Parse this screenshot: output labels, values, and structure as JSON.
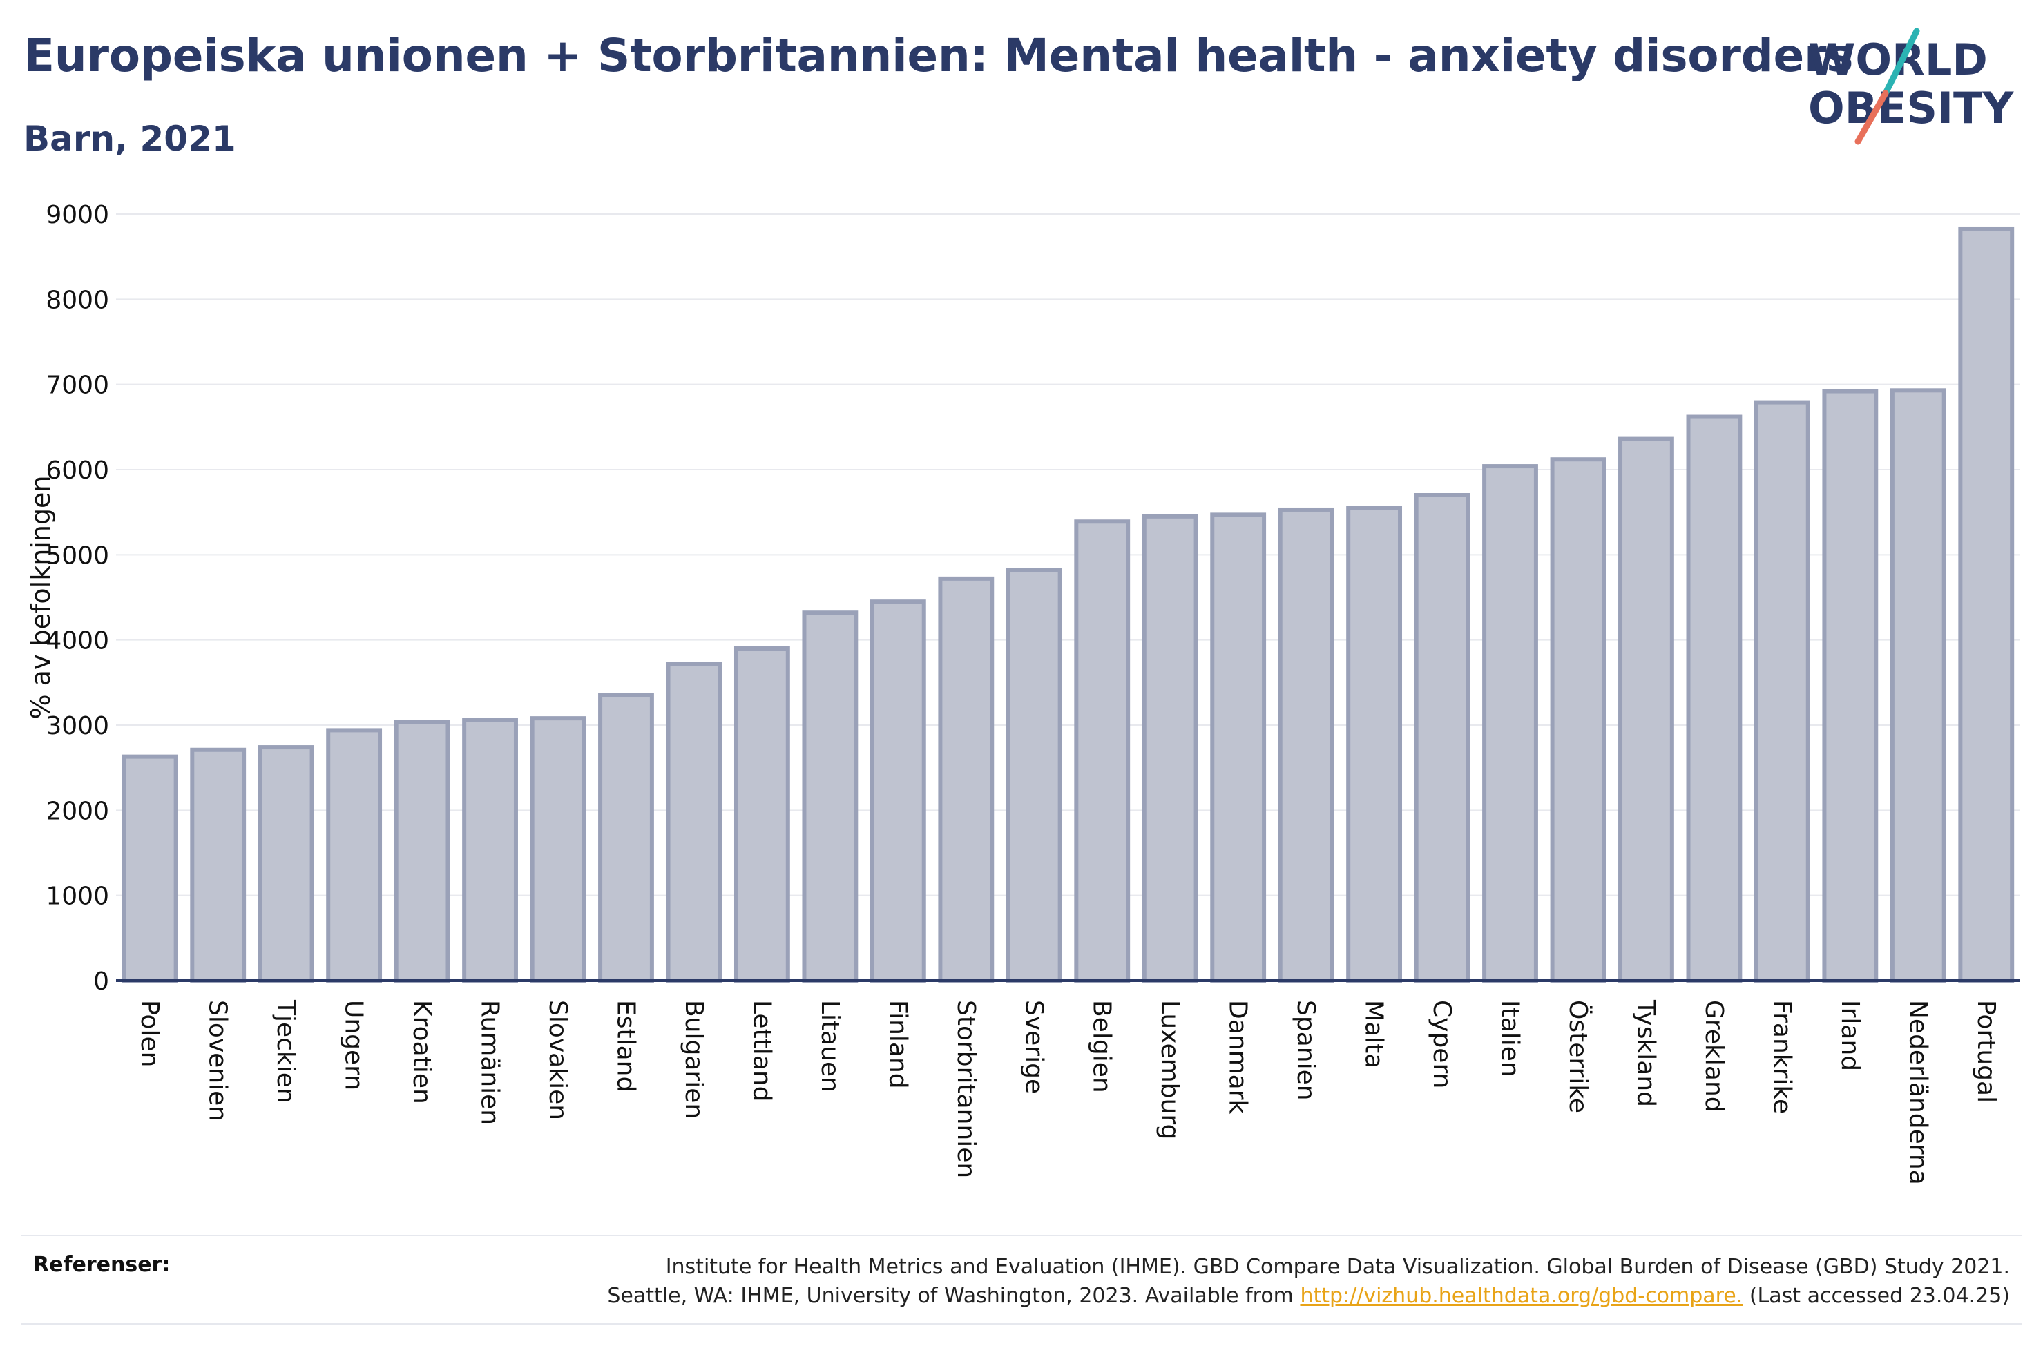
{
  "title": "Europeiska unionen + Storbritannien: Mental health - anxiety disorders",
  "subtitle": "Barn, 2021",
  "logo": {
    "line1": "WORLD",
    "line2": "OBESITY",
    "colors": {
      "navy": "#2b3a67",
      "teal": "#2bb3b3",
      "coral": "#e8705a"
    }
  },
  "references": {
    "label": "Referenser:",
    "line1": "Institute for Health Metrics and Evaluation (IHME). GBD Compare Data Visualization. Global Burden of Disease (GBD) Study 2021.",
    "line2_prefix": "Seattle, WA: IHME, University of Washington, 2023. Available from ",
    "link_text": "http://vizhub.healthdata.org/gbd-compare.",
    "line2_suffix": " (Last accessed 23.04.25)"
  },
  "chart_data": {
    "type": "bar",
    "ylabel": "% av befolkningen",
    "xlabel": "",
    "ylim": [
      0,
      9000
    ],
    "yticks": [
      0,
      1000,
      2000,
      3000,
      4000,
      5000,
      6000,
      7000,
      8000,
      9000
    ],
    "grid": true,
    "bar_color": "#bfc3d0",
    "bar_edge_color": "#9aa1b8",
    "categories": [
      "Polen",
      "Slovenien",
      "Tjeckien",
      "Ungern",
      "Kroatien",
      "Rumänien",
      "Slovakien",
      "Estland",
      "Bulgarien",
      "Lettland",
      "Litauen",
      "Finland",
      "Storbritannien",
      "Sverige",
      "Belgien",
      "Luxemburg",
      "Danmark",
      "Spanien",
      "Malta",
      "Cypern",
      "Italien",
      "Österrike",
      "Tyskland",
      "Grekland",
      "Frankrike",
      "Irland",
      "Nederländerna",
      "Portugal"
    ],
    "values": [
      2630,
      2710,
      2740,
      2940,
      3040,
      3060,
      3080,
      3350,
      3720,
      3900,
      4320,
      4450,
      4720,
      4820,
      5390,
      5450,
      5470,
      5530,
      5550,
      5700,
      6040,
      6120,
      6360,
      6620,
      6790,
      6920,
      6930,
      8830
    ]
  }
}
